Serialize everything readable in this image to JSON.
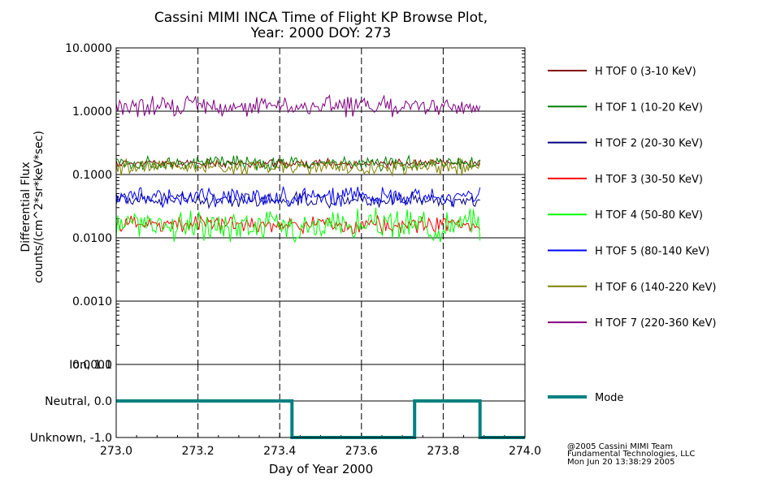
{
  "chart_data": [
    {
      "type": "line",
      "title": "Cassini MIMI INCA Time of Flight KP Browse Plot,",
      "subtitle": "Year: 2000 DOY: 273",
      "ylabel": "Differential Flux",
      "ylabel2": "counts/(cm^2*sr*keV*sec)",
      "yscale": "log",
      "ylim": [
        0.0001,
        10
      ],
      "yticks": [
        "10.0000",
        "1.0000",
        "0.1000",
        "0.0100",
        "0.0010",
        "0.0001"
      ],
      "ytick_values": [
        10,
        1,
        0.1,
        0.01,
        0.001,
        0.0001
      ],
      "xlim": [
        273.0,
        274.0
      ],
      "grid": "horizontal solid at decades, vertical dashed at 273.2, 273.4, 273.6, 273.8",
      "legend_position": "right",
      "x_end": 273.89,
      "series": [
        {
          "name": "H TOF 0 (3-10 KeV)",
          "color": "#800000",
          "base": 0.15,
          "jitter": 0.04
        },
        {
          "name": "H TOF 1 (10-20 KeV)",
          "color": "#008000",
          "base": 0.15,
          "jitter": 0.07
        },
        {
          "name": "H TOF 2 (20-30 KeV)",
          "color": "#000080",
          "base": 0.04,
          "jitter": 0.07
        },
        {
          "name": "H TOF 3 (30-50 KeV)",
          "color": "#ff0000",
          "base": 0.016,
          "jitter": 0.08
        },
        {
          "name": "H TOF 4 (50-80 KeV)",
          "color": "#00ff00",
          "base": 0.016,
          "jitter": 0.15
        },
        {
          "name": "H TOF 5 (80-140 KeV)",
          "color": "#0000ff",
          "base": 0.045,
          "jitter": 0.09
        },
        {
          "name": "H TOF 6 (140-220 KeV)",
          "color": "#808000",
          "base": 0.13,
          "jitter": 0.08
        },
        {
          "name": "H TOF 7 (220-360 KeV)",
          "color": "#800080",
          "base": 1.2,
          "jitter": 0.1
        }
      ]
    },
    {
      "type": "line",
      "ylim": [
        -1.0,
        1.0
      ],
      "yticks": [
        "Ion, 1.0",
        "Neutral, 0.0",
        "Unknown, -1.0"
      ],
      "ytick_values": [
        1,
        0,
        -1
      ],
      "xlim": [
        273.0,
        274.0
      ],
      "xticks": [
        "273.0",
        "273.2",
        "273.4",
        "273.6",
        "273.8",
        "274.0"
      ],
      "xtick_values": [
        273.0,
        273.2,
        273.4,
        273.6,
        273.8,
        274.0
      ],
      "xlabel": "Day of Year 2000",
      "series": [
        {
          "name": "Mode",
          "color": "#008080",
          "x": [
            273.0,
            273.43,
            273.43,
            273.73,
            273.73,
            273.89,
            273.89,
            274.0
          ],
          "y": [
            0,
            0,
            -1,
            -1,
            0,
            0,
            -1,
            -1
          ]
        }
      ]
    }
  ],
  "credits": {
    "line1": "@2005 Cassini MIMI Team",
    "line2": "Fundamental Technologies, LLC",
    "line3": "Mon Jun 20 13:38:29 2005"
  }
}
